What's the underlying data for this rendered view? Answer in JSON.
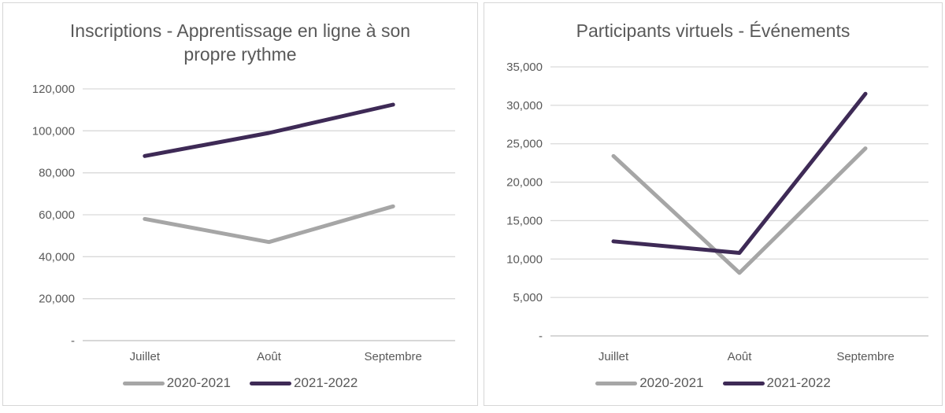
{
  "colors": {
    "series_2020_2021": "#a6a6a6",
    "series_2021_2022": "#3e2a56",
    "gridline": "#d9d9d9",
    "zero_axis_line": "#bfbfbf",
    "text": "#595959",
    "card_border": "#d6d6d6",
    "background": "#ffffff"
  },
  "chart_data": [
    {
      "type": "line",
      "title": "Inscriptions - Apprentissage en ligne à son propre rythme",
      "categories": [
        "Juillet",
        "Août",
        "Septembre"
      ],
      "series": [
        {
          "name": "2020-2021",
          "color_key": "series_2020_2021",
          "values": [
            58000,
            47000,
            64000
          ]
        },
        {
          "name": "2021-2022",
          "color_key": "series_2021_2022",
          "values": [
            88000,
            99000,
            112500
          ]
        }
      ],
      "ylim": [
        0,
        120000
      ],
      "y_step": 20000,
      "y_tick_labels": [
        "120,000",
        "100,000",
        "80,000",
        "60,000",
        "40,000",
        "20,000",
        "-"
      ],
      "zero_label": "-",
      "grid": true,
      "legend_position": "bottom"
    },
    {
      "type": "line",
      "title": "Participants virtuels - Événements",
      "categories": [
        "Juillet",
        "Août",
        "Septembre"
      ],
      "series": [
        {
          "name": "2020-2021",
          "color_key": "series_2020_2021",
          "values": [
            23400,
            8200,
            24400
          ]
        },
        {
          "name": "2021-2022",
          "color_key": "series_2021_2022",
          "values": [
            12300,
            10800,
            31500
          ]
        }
      ],
      "ylim": [
        0,
        35000
      ],
      "y_step": 5000,
      "y_tick_labels": [
        "35,000",
        "30,000",
        "25,000",
        "20,000",
        "15,000",
        "10,000",
        "5,000",
        "-"
      ],
      "zero_label": "-",
      "grid": true,
      "legend_position": "bottom"
    }
  ]
}
